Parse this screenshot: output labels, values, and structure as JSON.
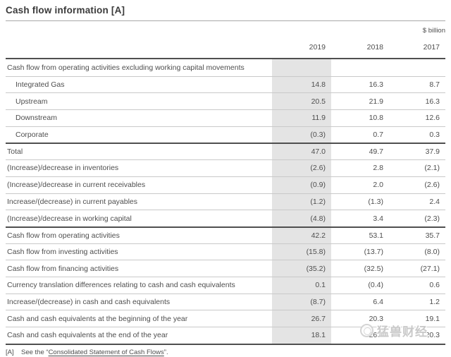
{
  "page": {
    "title": "Cash flow information [A]",
    "unit": "$ billion"
  },
  "table": {
    "year_headers": [
      "2019",
      "2018",
      "2017"
    ],
    "highlighted_year": "2019",
    "rows": [
      {
        "label": "Cash flow from operating activities excluding working capital movements",
        "values": [
          "",
          "",
          ""
        ],
        "indent": false,
        "section": true
      },
      {
        "label": "Integrated Gas",
        "values": [
          "14.8",
          "16.3",
          "8.7"
        ],
        "indent": true
      },
      {
        "label": "Upstream",
        "values": [
          "20.5",
          "21.9",
          "16.3"
        ],
        "indent": true
      },
      {
        "label": "Downstream",
        "values": [
          "11.9",
          "10.8",
          "12.6"
        ],
        "indent": true
      },
      {
        "label": "Corporate",
        "values": [
          "(0.3)",
          "0.7",
          "0.3"
        ],
        "indent": true
      },
      {
        "label": "Total",
        "values": [
          "47.0",
          "49.7",
          "37.9"
        ],
        "top_border": "dark"
      },
      {
        "label": "(Increase)/decrease in inventories",
        "values": [
          "(2.6)",
          "2.8",
          "(2.1)"
        ]
      },
      {
        "label": "(Increase)/decrease in current receivables",
        "values": [
          "(0.9)",
          "2.0",
          "(2.6)"
        ]
      },
      {
        "label": "Increase/(decrease) in current payables",
        "values": [
          "(1.2)",
          "(1.3)",
          "2.4"
        ]
      },
      {
        "label": "(Increase)/decrease in working capital",
        "values": [
          "(4.8)",
          "3.4",
          "(2.3)"
        ]
      },
      {
        "label": "Cash flow from operating activities",
        "values": [
          "42.2",
          "53.1",
          "35.7"
        ],
        "top_border": "dark"
      },
      {
        "label": "Cash flow from investing activities",
        "values": [
          "(15.8)",
          "(13.7)",
          "(8.0)"
        ]
      },
      {
        "label": "Cash flow from financing activities",
        "values": [
          "(35.2)",
          "(32.5)",
          "(27.1)"
        ]
      },
      {
        "label": "Currency translation differences relating to cash and cash equivalents",
        "values": [
          "0.1",
          "(0.4)",
          "0.6"
        ]
      },
      {
        "label": "Increase/(decrease) in cash and cash equivalents",
        "values": [
          "(8.7)",
          "6.4",
          "1.2"
        ]
      },
      {
        "label": "Cash and cash equivalents at the beginning of the year",
        "values": [
          "26.7",
          "20.3",
          "19.1"
        ]
      },
      {
        "label": "Cash and cash equivalents at the end of the year",
        "values": [
          "18.1",
          "26.7",
          "20.3"
        ]
      }
    ]
  },
  "footnote": {
    "marker": "[A]",
    "prefix": "See the “",
    "link": "Consolidated Statement of Cash Flows",
    "suffix": "”."
  },
  "watermark": {
    "text": "猛兽财经"
  },
  "colors": {
    "title_text": "#3a3a3a",
    "body_text": "#4e4e4e",
    "highlight_band": "#e4e4e4",
    "light_rule": "#c9c9c9",
    "dark_rule": "#4f4f4f",
    "watermark": "#c9c9c9"
  }
}
